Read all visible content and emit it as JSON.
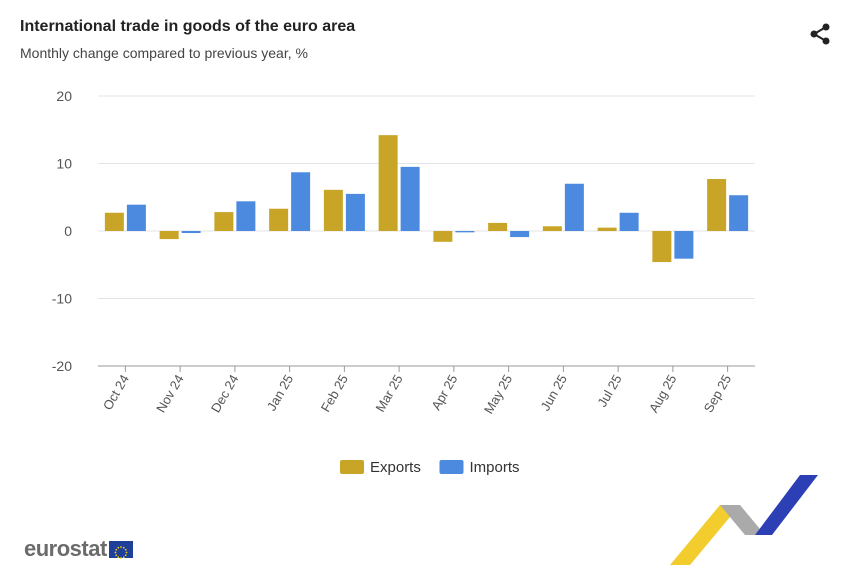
{
  "header": {
    "title": "International trade in goods of the euro area",
    "subtitle": "Monthly change compared to previous year, %"
  },
  "logo": {
    "text": "eurostat"
  },
  "chart_data": {
    "type": "bar",
    "title": "International trade in goods of the euro area",
    "subtitle": "Monthly change compared to previous year, %",
    "xlabel": "",
    "ylabel": "",
    "ylim": [
      -20,
      20
    ],
    "yticks": [
      20,
      10,
      0,
      -10,
      -20
    ],
    "grid": true,
    "legend": "bottom-center",
    "categories": [
      "Oct 24",
      "Nov 24",
      "Dec 24",
      "Jan 25",
      "Feb 25",
      "Mar 25",
      "Apr 25",
      "May 25",
      "Jun 25",
      "Jul 25",
      "Aug 25",
      "Sep 25"
    ],
    "series": [
      {
        "name": "Exports",
        "color": "#C9A527",
        "values": [
          2.7,
          -1.2,
          2.8,
          3.3,
          6.1,
          14.2,
          -1.6,
          1.2,
          0.7,
          0.5,
          -4.6,
          7.7
        ]
      },
      {
        "name": "Imports",
        "color": "#4C8ADF",
        "values": [
          3.9,
          -0.3,
          4.4,
          8.7,
          5.5,
          9.5,
          -0.2,
          -0.9,
          7.0,
          2.7,
          -4.1,
          5.3
        ]
      }
    ]
  }
}
